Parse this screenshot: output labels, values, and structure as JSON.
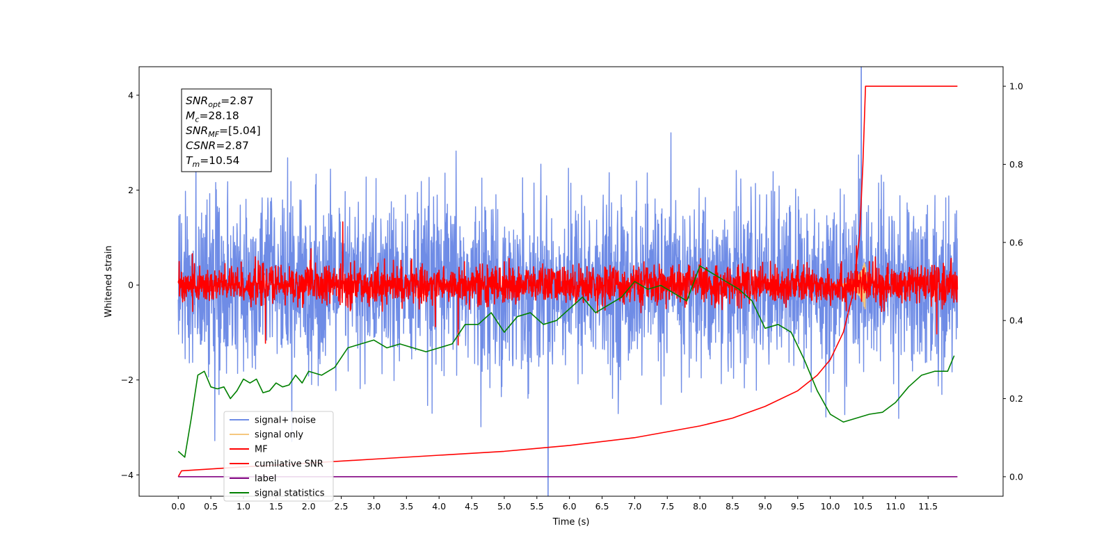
{
  "chart_data": {
    "type": "line",
    "xlabel": "Time (s)",
    "ylabel": "Whitened strain",
    "xlim": [
      -0.6,
      12.65
    ],
    "ylim": [
      -4.45,
      4.6
    ],
    "ylim_right": [
      -0.05,
      1.05
    ],
    "x_ticks": [
      "0.0",
      "0.5",
      "1.0",
      "1.5",
      "2.0",
      "2.5",
      "3.0",
      "3.5",
      "4.0",
      "4.5",
      "5.0",
      "5.5",
      "6.0",
      "6.5",
      "7.0",
      "7.5",
      "8.0",
      "8.5",
      "9.0",
      "9.5",
      "10.0",
      "10.5",
      "11.0",
      "11.5"
    ],
    "y_ticks": [
      "−4",
      "−2",
      "0",
      "2",
      "4"
    ],
    "y_ticks_right": [
      "0.0",
      "0.2",
      "0.4",
      "0.6",
      "0.8",
      "1.0"
    ],
    "grid": false,
    "legend_position": "lower-left",
    "annotation": [
      {
        "base": "SNR",
        "sub": "opt",
        "rest": "=2.87"
      },
      {
        "base": "M",
        "sub": "c",
        "rest": "=28.18"
      },
      {
        "base": "SNR",
        "sub": "MF",
        "rest": "=[5.04]"
      },
      {
        "base": "CSNR",
        "sub": "",
        "rest": "=2.87"
      },
      {
        "base": "T",
        "sub": "m",
        "rest": "=10.54"
      }
    ],
    "series": [
      {
        "name": "signal+ noise",
        "color": "#6f8ce6",
        "axis": "left",
        "kind": "noise",
        "sigma": 0.9
      },
      {
        "name": "signal only",
        "color": "#f5c77e",
        "axis": "left",
        "kind": "chirp",
        "peak_time": 10.54
      },
      {
        "name": "MF",
        "color": "#ff0000",
        "axis": "left",
        "kind": "noise",
        "sigma": 0.2
      },
      {
        "name": "cumilative SNR",
        "color": "#ff0000",
        "axis": "right",
        "x": [
          0.0,
          0.05,
          1.0,
          2.0,
          3.0,
          4.0,
          5.0,
          6.0,
          7.0,
          8.0,
          8.5,
          9.0,
          9.5,
          9.8,
          10.0,
          10.2,
          10.35,
          10.45,
          10.5,
          10.54,
          11.95
        ],
        "y": [
          0.0,
          0.015,
          0.025,
          0.035,
          0.045,
          0.055,
          0.065,
          0.08,
          0.1,
          0.13,
          0.15,
          0.18,
          0.22,
          0.26,
          0.3,
          0.37,
          0.47,
          0.62,
          0.8,
          1.0,
          1.0
        ]
      },
      {
        "name": "label",
        "color": "#800080",
        "axis": "right",
        "x": [
          0.0,
          11.95
        ],
        "y": [
          0.0,
          0.0
        ]
      },
      {
        "name": "signal statistics",
        "color": "#008000",
        "axis": "right",
        "x": [
          0.0,
          0.1,
          0.2,
          0.3,
          0.4,
          0.5,
          0.6,
          0.7,
          0.8,
          0.9,
          1.0,
          1.1,
          1.2,
          1.3,
          1.4,
          1.5,
          1.6,
          1.7,
          1.8,
          1.9,
          2.0,
          2.2,
          2.4,
          2.6,
          2.8,
          3.0,
          3.2,
          3.4,
          3.6,
          3.8,
          4.0,
          4.2,
          4.4,
          4.6,
          4.8,
          5.0,
          5.2,
          5.4,
          5.6,
          5.8,
          6.0,
          6.2,
          6.4,
          6.6,
          6.8,
          7.0,
          7.2,
          7.4,
          7.6,
          7.8,
          8.0,
          8.2,
          8.4,
          8.6,
          8.8,
          9.0,
          9.2,
          9.4,
          9.6,
          9.8,
          10.0,
          10.2,
          10.4,
          10.6,
          10.8,
          11.0,
          11.2,
          11.4,
          11.6,
          11.8,
          11.9
        ],
        "y": [
          0.065,
          0.05,
          0.15,
          0.26,
          0.27,
          0.23,
          0.225,
          0.23,
          0.2,
          0.22,
          0.25,
          0.24,
          0.25,
          0.215,
          0.22,
          0.24,
          0.23,
          0.235,
          0.26,
          0.24,
          0.27,
          0.26,
          0.28,
          0.33,
          0.34,
          0.35,
          0.33,
          0.34,
          0.33,
          0.32,
          0.33,
          0.34,
          0.39,
          0.39,
          0.42,
          0.37,
          0.41,
          0.42,
          0.39,
          0.4,
          0.43,
          0.46,
          0.42,
          0.44,
          0.46,
          0.5,
          0.48,
          0.49,
          0.47,
          0.45,
          0.54,
          0.52,
          0.5,
          0.48,
          0.45,
          0.38,
          0.39,
          0.37,
          0.3,
          0.22,
          0.16,
          0.14,
          0.15,
          0.16,
          0.165,
          0.19,
          0.23,
          0.26,
          0.27,
          0.27,
          0.31
        ]
      }
    ]
  }
}
